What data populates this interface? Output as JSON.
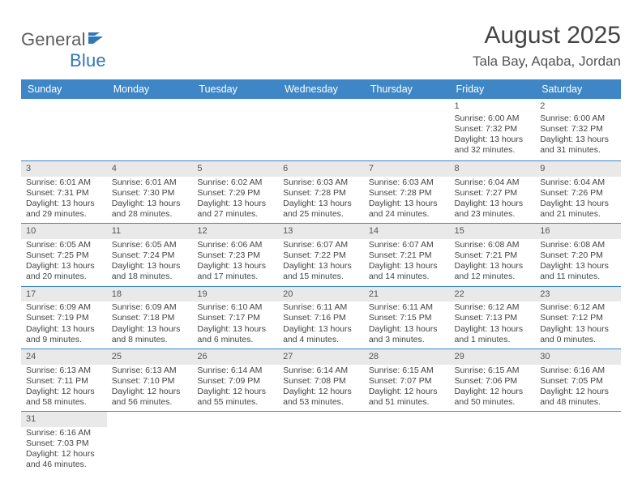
{
  "brand": {
    "name_gray": "General",
    "name_blue": "Blue",
    "flag_color": "#2f77b6",
    "text_gray": "#5c5c5c"
  },
  "title": {
    "month_year": "August 2025",
    "month_fontsize": 30,
    "location": "Tala Bay, Aqaba, Jordan",
    "location_fontsize": 17
  },
  "colors": {
    "header_row_bg": "#3e86c6",
    "header_row_text": "#ffffff",
    "row_divider": "#3e86c6",
    "shade_bg": "#e9e9e9",
    "body_text": "#444444",
    "page_bg": "#ffffff"
  },
  "weekdays": [
    "Sunday",
    "Monday",
    "Tuesday",
    "Wednesday",
    "Thursday",
    "Friday",
    "Saturday"
  ],
  "weeks": [
    [
      null,
      null,
      null,
      null,
      null,
      {
        "d": "1",
        "sunrise": "6:00 AM",
        "sunset": "7:32 PM",
        "dl_h": "13",
        "dl_m": "32"
      },
      {
        "d": "2",
        "sunrise": "6:00 AM",
        "sunset": "7:32 PM",
        "dl_h": "13",
        "dl_m": "31"
      }
    ],
    [
      {
        "d": "3",
        "sunrise": "6:01 AM",
        "sunset": "7:31 PM",
        "dl_h": "13",
        "dl_m": "29"
      },
      {
        "d": "4",
        "sunrise": "6:01 AM",
        "sunset": "7:30 PM",
        "dl_h": "13",
        "dl_m": "28"
      },
      {
        "d": "5",
        "sunrise": "6:02 AM",
        "sunset": "7:29 PM",
        "dl_h": "13",
        "dl_m": "27"
      },
      {
        "d": "6",
        "sunrise": "6:03 AM",
        "sunset": "7:28 PM",
        "dl_h": "13",
        "dl_m": "25"
      },
      {
        "d": "7",
        "sunrise": "6:03 AM",
        "sunset": "7:28 PM",
        "dl_h": "13",
        "dl_m": "24"
      },
      {
        "d": "8",
        "sunrise": "6:04 AM",
        "sunset": "7:27 PM",
        "dl_h": "13",
        "dl_m": "23"
      },
      {
        "d": "9",
        "sunrise": "6:04 AM",
        "sunset": "7:26 PM",
        "dl_h": "13",
        "dl_m": "21"
      }
    ],
    [
      {
        "d": "10",
        "sunrise": "6:05 AM",
        "sunset": "7:25 PM",
        "dl_h": "13",
        "dl_m": "20"
      },
      {
        "d": "11",
        "sunrise": "6:05 AM",
        "sunset": "7:24 PM",
        "dl_h": "13",
        "dl_m": "18"
      },
      {
        "d": "12",
        "sunrise": "6:06 AM",
        "sunset": "7:23 PM",
        "dl_h": "13",
        "dl_m": "17"
      },
      {
        "d": "13",
        "sunrise": "6:07 AM",
        "sunset": "7:22 PM",
        "dl_h": "13",
        "dl_m": "15"
      },
      {
        "d": "14",
        "sunrise": "6:07 AM",
        "sunset": "7:21 PM",
        "dl_h": "13",
        "dl_m": "14"
      },
      {
        "d": "15",
        "sunrise": "6:08 AM",
        "sunset": "7:21 PM",
        "dl_h": "13",
        "dl_m": "12"
      },
      {
        "d": "16",
        "sunrise": "6:08 AM",
        "sunset": "7:20 PM",
        "dl_h": "13",
        "dl_m": "11"
      }
    ],
    [
      {
        "d": "17",
        "sunrise": "6:09 AM",
        "sunset": "7:19 PM",
        "dl_h": "13",
        "dl_m": "9"
      },
      {
        "d": "18",
        "sunrise": "6:09 AM",
        "sunset": "7:18 PM",
        "dl_h": "13",
        "dl_m": "8"
      },
      {
        "d": "19",
        "sunrise": "6:10 AM",
        "sunset": "7:17 PM",
        "dl_h": "13",
        "dl_m": "6"
      },
      {
        "d": "20",
        "sunrise": "6:11 AM",
        "sunset": "7:16 PM",
        "dl_h": "13",
        "dl_m": "4"
      },
      {
        "d": "21",
        "sunrise": "6:11 AM",
        "sunset": "7:15 PM",
        "dl_h": "13",
        "dl_m": "3"
      },
      {
        "d": "22",
        "sunrise": "6:12 AM",
        "sunset": "7:13 PM",
        "dl_h": "13",
        "dl_m": "1"
      },
      {
        "d": "23",
        "sunrise": "6:12 AM",
        "sunset": "7:12 PM",
        "dl_h": "13",
        "dl_m": "0"
      }
    ],
    [
      {
        "d": "24",
        "sunrise": "6:13 AM",
        "sunset": "7:11 PM",
        "dl_h": "12",
        "dl_m": "58"
      },
      {
        "d": "25",
        "sunrise": "6:13 AM",
        "sunset": "7:10 PM",
        "dl_h": "12",
        "dl_m": "56"
      },
      {
        "d": "26",
        "sunrise": "6:14 AM",
        "sunset": "7:09 PM",
        "dl_h": "12",
        "dl_m": "55"
      },
      {
        "d": "27",
        "sunrise": "6:14 AM",
        "sunset": "7:08 PM",
        "dl_h": "12",
        "dl_m": "53"
      },
      {
        "d": "28",
        "sunrise": "6:15 AM",
        "sunset": "7:07 PM",
        "dl_h": "12",
        "dl_m": "51"
      },
      {
        "d": "29",
        "sunrise": "6:15 AM",
        "sunset": "7:06 PM",
        "dl_h": "12",
        "dl_m": "50"
      },
      {
        "d": "30",
        "sunrise": "6:16 AM",
        "sunset": "7:05 PM",
        "dl_h": "12",
        "dl_m": "48"
      }
    ],
    [
      {
        "d": "31",
        "sunrise": "6:16 AM",
        "sunset": "7:03 PM",
        "dl_h": "12",
        "dl_m": "46"
      },
      null,
      null,
      null,
      null,
      null,
      null
    ]
  ],
  "labels": {
    "sunrise_prefix": "Sunrise: ",
    "sunset_prefix": "Sunset: ",
    "daylight_prefix": "Daylight: ",
    "hours_word": " hours",
    "and_word": "and ",
    "minutes_word": " minutes."
  }
}
